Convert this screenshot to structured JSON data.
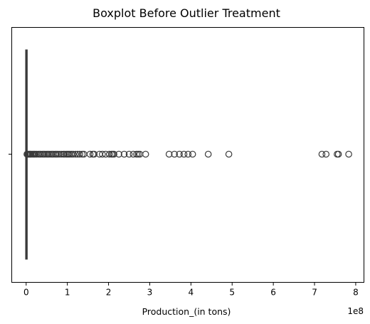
{
  "chart_data": {
    "type": "boxplot",
    "orientation": "horizontal",
    "title": "Boxplot Before Outlier Treatment",
    "xlabel": "Production_(in tons)",
    "ylabel": "",
    "x_offset_label": "1e8",
    "xlim": [
      -0.35,
      8.2
    ],
    "x_ticks": [
      0,
      1,
      2,
      3,
      4,
      5,
      6,
      7,
      8
    ],
    "x_tick_labels": [
      "0",
      "1",
      "2",
      "3",
      "4",
      "5",
      "6",
      "7",
      "8"
    ],
    "y_tick_labels": [
      ""
    ],
    "grid": false,
    "box_color": "#3a3a3a",
    "box": {
      "min": 0,
      "q1": 0,
      "median": 0,
      "q3": 0.005,
      "max": 0.01
    },
    "fliers": [
      0.02,
      0.04,
      0.06,
      0.08,
      0.1,
      0.12,
      0.15,
      0.18,
      0.2,
      0.23,
      0.26,
      0.3,
      0.33,
      0.36,
      0.4,
      0.43,
      0.46,
      0.5,
      0.53,
      0.56,
      0.6,
      0.63,
      0.66,
      0.7,
      0.73,
      0.76,
      0.8,
      0.85,
      0.9,
      0.93,
      0.97,
      1.0,
      1.03,
      1.06,
      1.1,
      1.14,
      1.2,
      1.25,
      1.3,
      1.36,
      1.4,
      1.55,
      1.62,
      1.65,
      1.78,
      1.85,
      1.93,
      2.02,
      2.07,
      2.1,
      2.13,
      2.25,
      2.38,
      2.5,
      2.6,
      2.68,
      2.72,
      2.76,
      2.9,
      3.47,
      3.6,
      3.72,
      3.83,
      3.93,
      4.04,
      4.42,
      4.92,
      7.18,
      7.28,
      7.55,
      7.58,
      7.83
    ]
  }
}
